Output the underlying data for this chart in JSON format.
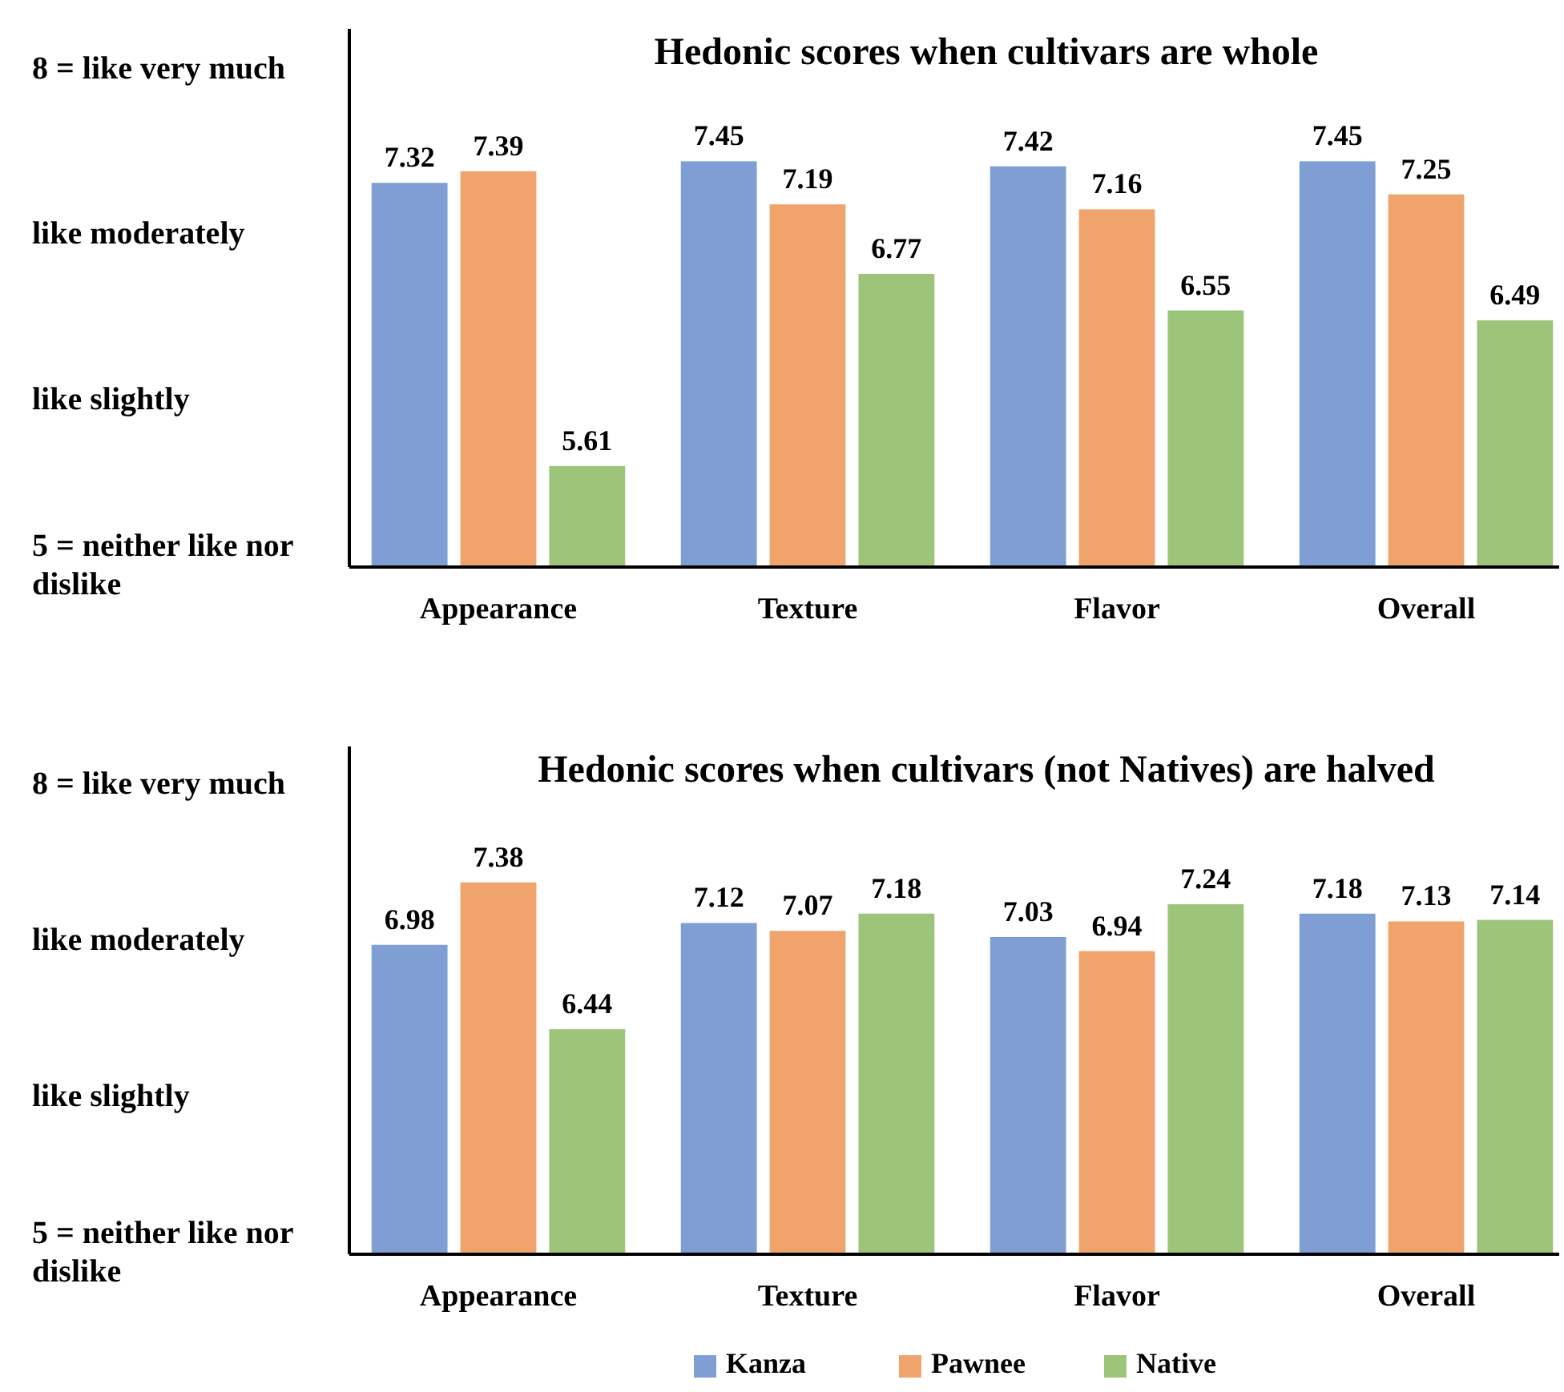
{
  "chart_data": [
    {
      "type": "bar",
      "title": "Hedonic scores when cultivars are whole",
      "categories": [
        "Appearance",
        "Texture",
        "Flavor",
        "Overall"
      ],
      "series": [
        {
          "color": "#7f9fd4",
          "values": [
            7.32,
            7.45,
            7.42,
            7.45
          ]
        },
        {
          "color": "#f0a46c",
          "values": [
            7.39,
            7.19,
            7.16,
            7.25
          ]
        },
        {
          "color": "#9cc57a",
          "values": [
            5.61,
            6.77,
            6.55,
            6.49
          ]
        }
      ],
      "ylim": [
        5,
        8.25
      ],
      "yticks": [
        {
          "value": 8,
          "label": "8 = like very much"
        },
        {
          "value": 7,
          "label": "like moderately"
        },
        {
          "value": 6,
          "label": "like slightly"
        },
        {
          "value": 5,
          "label": "5 = neither like nor dislike"
        }
      ],
      "data_labels": true,
      "grid": false,
      "legend": false
    },
    {
      "type": "bar",
      "title": "Hedonic scores when cultivars (not Natives) are halved",
      "categories": [
        "Appearance",
        "Texture",
        "Flavor",
        "Overall"
      ],
      "series": [
        {
          "name": "Kanza",
          "color": "#7f9fd4",
          "values": [
            6.98,
            7.12,
            7.03,
            7.18
          ]
        },
        {
          "name": "Pawnee",
          "color": "#f0a46c",
          "values": [
            7.38,
            7.07,
            6.94,
            7.13
          ]
        },
        {
          "name": "Native",
          "color": "#9cc57a",
          "values": [
            6.44,
            7.18,
            7.24,
            7.14
          ]
        }
      ],
      "ylim": [
        5,
        8.25
      ],
      "yticks": [
        {
          "value": 8,
          "label": "8 = like very much"
        },
        {
          "value": 7,
          "label": "like moderately"
        },
        {
          "value": 6,
          "label": "like slightly"
        },
        {
          "value": 5,
          "label": "5 = neither like nor dislike"
        }
      ],
      "data_labels": true,
      "grid": false,
      "legend": "bottom"
    }
  ]
}
